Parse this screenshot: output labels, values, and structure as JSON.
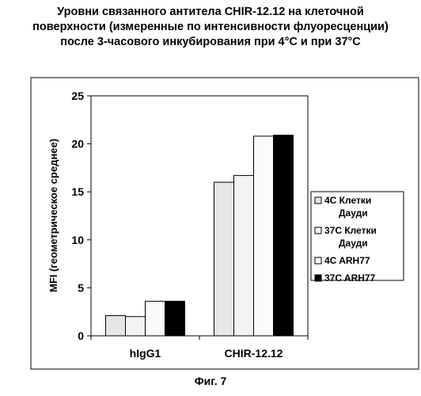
{
  "title_lines": [
    "Уровни связанного антитела CHIR-12.12 на клеточной",
    "поверхности (измеренные по интенсивности флуоресценции)",
    "после 3-часового инкубирования при 4°C и при 37°C"
  ],
  "figure_caption": "Фиг. 7",
  "chart_data": {
    "type": "bar",
    "title": "Уровни связанного антитела CHIR-12.12 на клеточной поверхности (измеренные по интенсивности флуоресценции) после 3-часового инкубирования при 4°C и при 37°C",
    "categories": [
      "hIgG1",
      "CHIR-12.12"
    ],
    "ylabel": "MFI (геометрическое среднее)",
    "xlabel": "",
    "ylim": [
      0,
      25
    ],
    "yticks": [
      0,
      5,
      10,
      15,
      20,
      25
    ],
    "grid": false,
    "legend_position": "right",
    "series": [
      {
        "name": "4C  Клетки Дауди",
        "legend_lines": [
          "4C  Клетки",
          "Дауди"
        ],
        "values": [
          2.1,
          16.0
        ],
        "color": "#e6e6e6"
      },
      {
        "name": "37C Клетки Дауди",
        "legend_lines": [
          "37C Клетки",
          "Дауди"
        ],
        "values": [
          2.0,
          16.7
        ],
        "color": "#f3f3f3"
      },
      {
        "name": "4C  ARH77",
        "legend_lines": [
          "4C  ARH77"
        ],
        "values": [
          3.6,
          20.8
        ],
        "color": "#fafafa"
      },
      {
        "name": "37C ARH77",
        "legend_lines": [
          "37C ARH77"
        ],
        "values": [
          3.6,
          20.9
        ],
        "color": "#000000"
      }
    ]
  }
}
